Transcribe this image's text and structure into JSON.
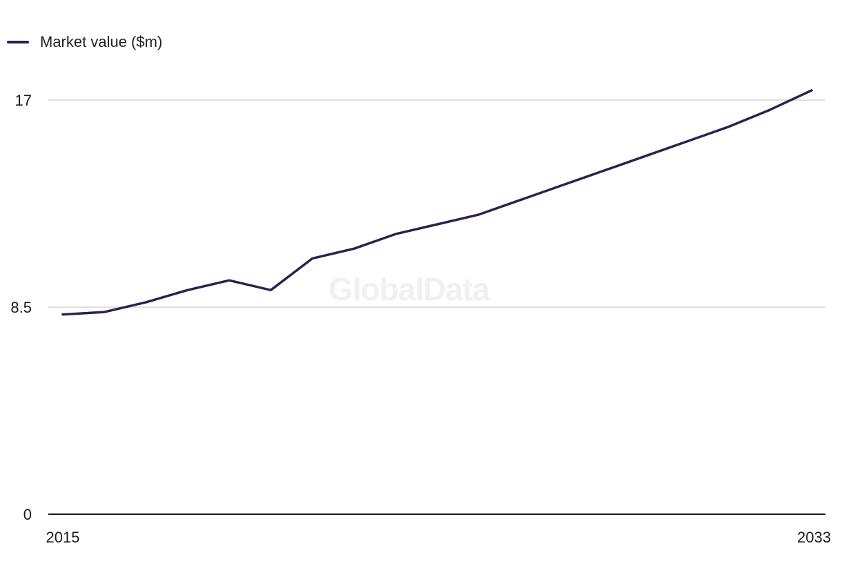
{
  "legend": {
    "label": "Market value ($m)"
  },
  "watermark": "GlobalData",
  "colors": {
    "line": "#2f1f4f",
    "grid": "#d6d6da",
    "axis": "#1a1a1a",
    "watermark": "#f1f1f3"
  },
  "chart_data": {
    "type": "line",
    "title": "",
    "xlabel": "",
    "ylabel": "",
    "x": [
      2015,
      2016,
      2017,
      2018,
      2019,
      2020,
      2021,
      2022,
      2023,
      2024,
      2025,
      2026,
      2027,
      2028,
      2029,
      2030,
      2031,
      2032,
      2033
    ],
    "series": [
      {
        "name": "Market value ($m)",
        "values": [
          8.2,
          8.3,
          8.7,
          9.2,
          9.6,
          9.2,
          10.5,
          10.9,
          11.5,
          11.9,
          12.3,
          12.9,
          13.5,
          14.1,
          14.7,
          15.3,
          15.9,
          16.6,
          17.4
        ]
      }
    ],
    "xticks": [
      "2015",
      "2033"
    ],
    "yticks": [
      "0",
      "8.5",
      "17"
    ],
    "ylim": [
      0,
      17
    ],
    "grid": true,
    "legend_position": "top-left"
  }
}
